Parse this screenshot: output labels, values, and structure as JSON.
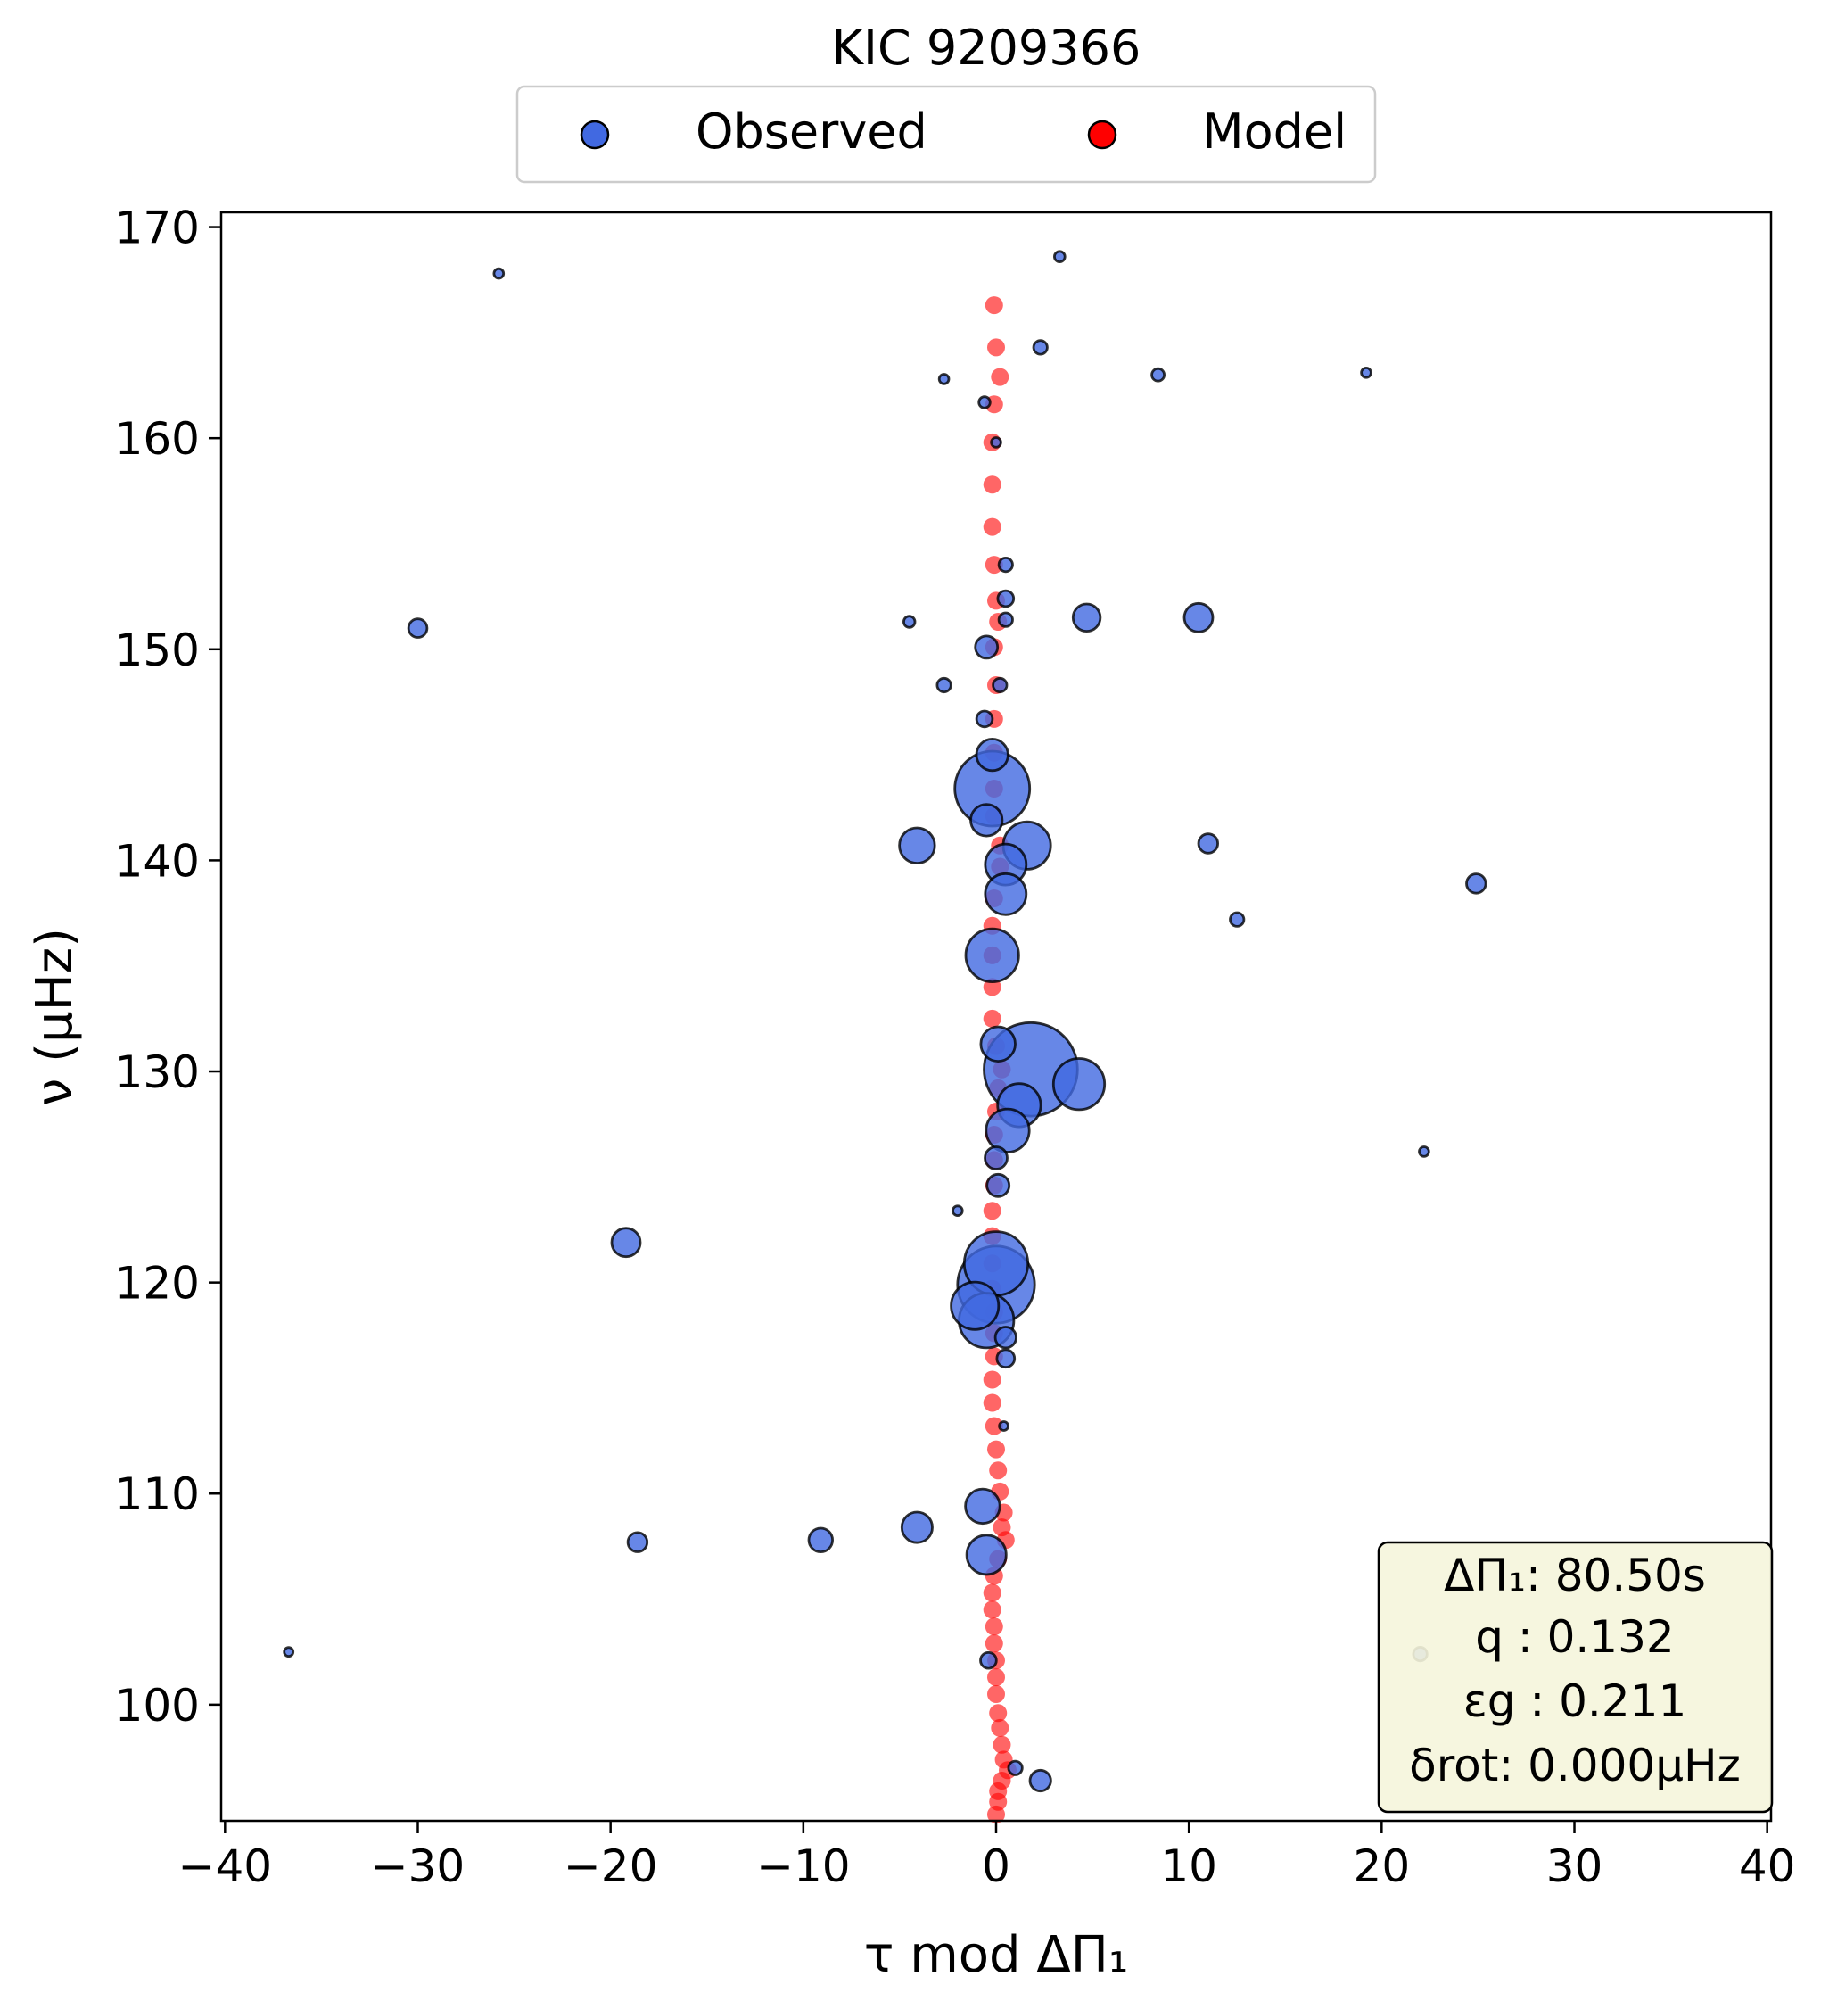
{
  "chart_data": {
    "type": "scatter",
    "title": "KIC 9209366",
    "xlabel": "τ mod ΔΠ₁",
    "ylabel": "ν (μHz)",
    "xlim": [
      -40.2,
      40.2
    ],
    "ylim": [
      94.5,
      170.7
    ],
    "x_ticks": [
      -40,
      -30,
      -20,
      -10,
      0,
      10,
      20,
      30,
      40
    ],
    "x_tick_labels": [
      "−40",
      "−30",
      "−20",
      "−10",
      "0",
      "10",
      "20",
      "30",
      "40"
    ],
    "y_ticks": [
      100,
      110,
      120,
      130,
      140,
      150,
      160,
      170
    ],
    "y_tick_labels": [
      "100",
      "110",
      "120",
      "130",
      "140",
      "150",
      "160",
      "170"
    ],
    "grid": false,
    "legend_position": "top-center",
    "legend": [
      {
        "label": "Observed",
        "color": "#4169e1"
      },
      {
        "label": "Model",
        "color": "#ff0000"
      }
    ],
    "series": [
      {
        "name": "Model",
        "color": "#ff0000",
        "points": [
          {
            "x": -0.1,
            "y": 166.3
          },
          {
            "x": 0.0,
            "y": 164.3
          },
          {
            "x": 0.2,
            "y": 162.9
          },
          {
            "x": -0.1,
            "y": 161.6
          },
          {
            "x": -0.2,
            "y": 159.8
          },
          {
            "x": -0.2,
            "y": 157.8
          },
          {
            "x": -0.2,
            "y": 155.8
          },
          {
            "x": -0.1,
            "y": 154.0
          },
          {
            "x": 0.0,
            "y": 152.3
          },
          {
            "x": 0.1,
            "y": 151.3
          },
          {
            "x": -0.1,
            "y": 150.1
          },
          {
            "x": 0.0,
            "y": 148.3
          },
          {
            "x": -0.1,
            "y": 146.7
          },
          {
            "x": -0.1,
            "y": 145.1
          },
          {
            "x": -0.1,
            "y": 143.4
          },
          {
            "x": -0.1,
            "y": 142.1
          },
          {
            "x": 0.2,
            "y": 140.7
          },
          {
            "x": 0.2,
            "y": 139.7
          },
          {
            "x": -0.1,
            "y": 138.2
          },
          {
            "x": -0.2,
            "y": 136.9
          },
          {
            "x": -0.2,
            "y": 135.5
          },
          {
            "x": -0.2,
            "y": 134.0
          },
          {
            "x": -0.2,
            "y": 132.5
          },
          {
            "x": 0.0,
            "y": 131.2
          },
          {
            "x": 0.3,
            "y": 130.1
          },
          {
            "x": 0.1,
            "y": 129.2
          },
          {
            "x": 0.0,
            "y": 128.1
          },
          {
            "x": -0.1,
            "y": 127.0
          },
          {
            "x": -0.1,
            "y": 125.8
          },
          {
            "x": -0.1,
            "y": 124.6
          },
          {
            "x": -0.2,
            "y": 123.4
          },
          {
            "x": -0.2,
            "y": 122.2
          },
          {
            "x": -0.2,
            "y": 120.9
          },
          {
            "x": -0.2,
            "y": 119.7
          },
          {
            "x": -0.1,
            "y": 118.6
          },
          {
            "x": -0.1,
            "y": 117.6
          },
          {
            "x": -0.1,
            "y": 116.5
          },
          {
            "x": -0.2,
            "y": 115.4
          },
          {
            "x": -0.2,
            "y": 114.3
          },
          {
            "x": -0.1,
            "y": 113.2
          },
          {
            "x": 0.0,
            "y": 112.1
          },
          {
            "x": 0.1,
            "y": 111.1
          },
          {
            "x": 0.2,
            "y": 110.1
          },
          {
            "x": 0.4,
            "y": 109.1
          },
          {
            "x": 0.3,
            "y": 108.4
          },
          {
            "x": 0.5,
            "y": 107.8
          },
          {
            "x": 0.1,
            "y": 106.9
          },
          {
            "x": -0.1,
            "y": 106.1
          },
          {
            "x": -0.2,
            "y": 105.3
          },
          {
            "x": -0.2,
            "y": 104.5
          },
          {
            "x": -0.1,
            "y": 103.7
          },
          {
            "x": -0.1,
            "y": 102.9
          },
          {
            "x": 0.0,
            "y": 102.1
          },
          {
            "x": 0.0,
            "y": 101.3
          },
          {
            "x": 0.0,
            "y": 100.5
          },
          {
            "x": 0.1,
            "y": 99.6
          },
          {
            "x": 0.2,
            "y": 98.9
          },
          {
            "x": 0.3,
            "y": 98.1
          },
          {
            "x": 0.4,
            "y": 97.4
          },
          {
            "x": 0.6,
            "y": 96.9
          },
          {
            "x": 0.3,
            "y": 96.4
          },
          {
            "x": 0.1,
            "y": 95.9
          },
          {
            "x": 0.1,
            "y": 95.4
          },
          {
            "x": 0.0,
            "y": 94.8
          }
        ]
      },
      {
        "name": "Observed",
        "color": "#4169e1",
        "points": [
          {
            "x": -25.8,
            "y": 167.8,
            "s": 0.15
          },
          {
            "x": 3.3,
            "y": 168.6,
            "s": 0.18
          },
          {
            "x": 2.3,
            "y": 164.3,
            "s": 0.3
          },
          {
            "x": -2.7,
            "y": 162.8,
            "s": 0.15
          },
          {
            "x": 8.4,
            "y": 163.0,
            "s": 0.25
          },
          {
            "x": 19.2,
            "y": 163.1,
            "s": 0.15
          },
          {
            "x": -0.6,
            "y": 161.7,
            "s": 0.2
          },
          {
            "x": 0.0,
            "y": 159.8,
            "s": 0.15
          },
          {
            "x": 0.5,
            "y": 154.0,
            "s": 0.3
          },
          {
            "x": 0.5,
            "y": 152.4,
            "s": 0.4
          },
          {
            "x": -30.0,
            "y": 151.0,
            "s": 0.55
          },
          {
            "x": -4.5,
            "y": 151.3,
            "s": 0.2
          },
          {
            "x": 0.5,
            "y": 151.4,
            "s": 0.3
          },
          {
            "x": 4.7,
            "y": 151.5,
            "s": 1.2
          },
          {
            "x": 10.5,
            "y": 151.5,
            "s": 1.3
          },
          {
            "x": -0.5,
            "y": 150.1,
            "s": 0.8
          },
          {
            "x": -2.7,
            "y": 148.3,
            "s": 0.3
          },
          {
            "x": 0.2,
            "y": 148.3,
            "s": 0.3
          },
          {
            "x": -0.6,
            "y": 146.7,
            "s": 0.4
          },
          {
            "x": -0.2,
            "y": 145.0,
            "s": 1.6
          },
          {
            "x": -0.2,
            "y": 143.4,
            "s": 9.0
          },
          {
            "x": -0.5,
            "y": 141.9,
            "s": 1.6
          },
          {
            "x": -4.1,
            "y": 140.7,
            "s": 2.0
          },
          {
            "x": 1.6,
            "y": 140.7,
            "s": 3.6
          },
          {
            "x": 11.0,
            "y": 140.8,
            "s": 0.6
          },
          {
            "x": 0.5,
            "y": 139.8,
            "s": 2.7
          },
          {
            "x": 0.5,
            "y": 138.4,
            "s": 2.7
          },
          {
            "x": 24.9,
            "y": 138.9,
            "s": 0.6
          },
          {
            "x": 12.5,
            "y": 137.2,
            "s": 0.3
          },
          {
            "x": -0.2,
            "y": 135.5,
            "s": 4.5
          },
          {
            "x": 0.1,
            "y": 131.3,
            "s": 1.9
          },
          {
            "x": 1.8,
            "y": 130.1,
            "s": 14.0
          },
          {
            "x": 4.3,
            "y": 129.4,
            "s": 4.2
          },
          {
            "x": 1.2,
            "y": 128.4,
            "s": 3.0
          },
          {
            "x": 0.6,
            "y": 127.2,
            "s": 3.0
          },
          {
            "x": 22.2,
            "y": 126.2,
            "s": 0.15
          },
          {
            "x": 0.0,
            "y": 125.9,
            "s": 0.8
          },
          {
            "x": 0.1,
            "y": 124.6,
            "s": 0.8
          },
          {
            "x": -2.0,
            "y": 123.4,
            "s": 0.15
          },
          {
            "x": -19.2,
            "y": 121.9,
            "s": 1.3
          },
          {
            "x": 0.0,
            "y": 120.9,
            "s": 6.5
          },
          {
            "x": 0.0,
            "y": 119.9,
            "s": 9.5
          },
          {
            "x": -1.1,
            "y": 118.9,
            "s": 3.6
          },
          {
            "x": -0.5,
            "y": 118.2,
            "s": 4.8
          },
          {
            "x": 0.5,
            "y": 117.4,
            "s": 0.7
          },
          {
            "x": 0.5,
            "y": 116.4,
            "s": 0.5
          },
          {
            "x": 0.4,
            "y": 113.2,
            "s": 0.1
          },
          {
            "x": -0.7,
            "y": 109.4,
            "s": 1.9
          },
          {
            "x": -4.1,
            "y": 108.4,
            "s": 1.5
          },
          {
            "x": -9.1,
            "y": 107.8,
            "s": 0.9
          },
          {
            "x": -18.6,
            "y": 107.7,
            "s": 0.6
          },
          {
            "x": -0.5,
            "y": 107.1,
            "s": 2.5
          },
          {
            "x": -36.7,
            "y": 102.5,
            "s": 0.1
          },
          {
            "x": -0.4,
            "y": 102.1,
            "s": 0.4
          },
          {
            "x": 1.0,
            "y": 97.0,
            "s": 0.3
          },
          {
            "x": 2.3,
            "y": 96.4,
            "s": 0.7
          },
          {
            "x": 22.0,
            "y": 102.4,
            "s": 0.3
          }
        ]
      }
    ],
    "annotation_box": {
      "lines": [
        "ΔΠ₁: 80.50s",
        "q : 0.132",
        "εg : 0.211",
        "δrot: 0.000μHz"
      ],
      "background": "#f5f5dc",
      "position": "bottom-right"
    }
  }
}
